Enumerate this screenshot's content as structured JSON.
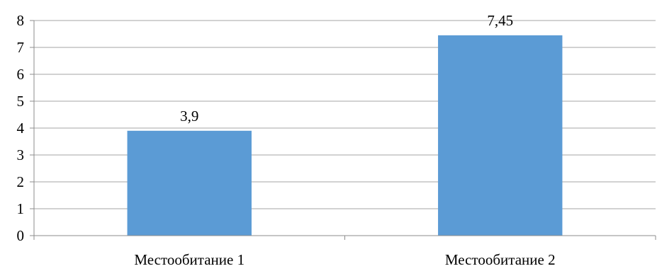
{
  "chart_data": {
    "type": "bar",
    "categories": [
      "Местообитание 1",
      "Местообитание 2"
    ],
    "values": [
      3.9,
      7.45
    ],
    "data_labels": [
      "3,9",
      "7,45"
    ],
    "title": "",
    "xlabel": "",
    "ylabel": "",
    "ylim": [
      0,
      8
    ],
    "yticks": [
      0,
      1,
      2,
      3,
      4,
      5,
      6,
      7,
      8
    ],
    "grid": true,
    "legend": "none",
    "bar_color": "#5b9bd5"
  }
}
